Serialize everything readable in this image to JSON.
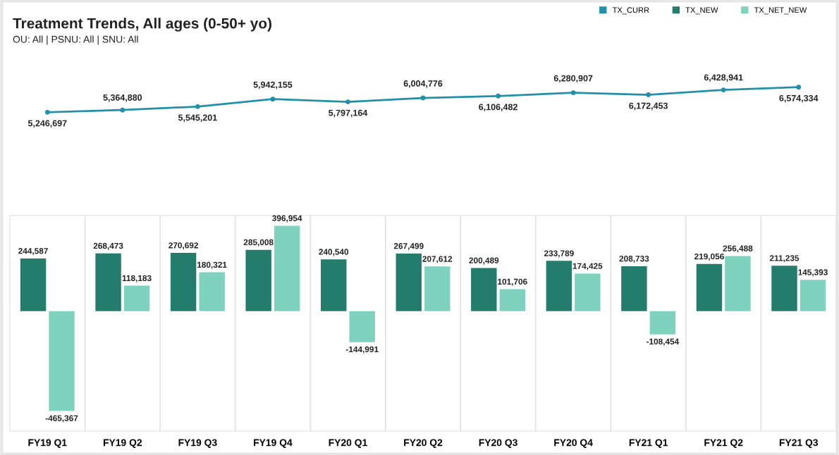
{
  "chart_data": [
    {
      "type": "line",
      "title": "Treatment Trends, All ages (0-50+ yo)",
      "subtitle": "OU: All | PSNU: All | SNU: All",
      "categories": [
        null,
        null,
        null,
        null,
        null,
        null,
        null,
        null,
        null,
        null,
        null
      ],
      "series": [
        {
          "name": "TX_CURR",
          "color": "#2190a8",
          "values": [
            5246697,
            5364880,
            5545201,
            5942155,
            5797164,
            6004776,
            6106482,
            6280907,
            6172453,
            6428941,
            6574334
          ],
          "value_labels": [
            "5,246,697",
            "5,364,880",
            "5,545,201",
            "5,942,155",
            "5,797,164",
            "6,004,776",
            "6,106,482",
            "6,280,907",
            "6,172,453",
            "6,428,941",
            "6,574,334"
          ]
        }
      ],
      "marker": "circle",
      "legend": "top right",
      "tick_labels": false,
      "grid": false
    },
    {
      "type": "bar",
      "categories": [
        "FY19 Q1",
        "FY19 Q2",
        "FY19 Q3",
        "FY19 Q4",
        "FY20 Q1",
        "FY20 Q2",
        "FY20 Q3",
        "FY20 Q4",
        "FY21 Q1",
        "FY21 Q2",
        "FY21 Q3"
      ],
      "series": [
        {
          "name": "TX_NEW",
          "color": "#237c6c",
          "values": [
            244587,
            268473,
            270692,
            285008,
            240540,
            267499,
            200489,
            233789,
            208733,
            219056,
            211235
          ],
          "value_labels": [
            "244,587",
            "268,473",
            "270,692",
            "285,008",
            "240,540",
            "267,499",
            "200,489",
            "233,789",
            "208,733",
            "219,056",
            "211,235"
          ]
        },
        {
          "name": "TX_NET_NEW",
          "color": "#7fd3be",
          "values": [
            -465367,
            118183,
            180321,
            396954,
            -144991,
            207612,
            101706,
            174425,
            -108454,
            256488,
            145393
          ],
          "value_labels": [
            "-465,367",
            "118,183",
            "180,321",
            "396,954",
            "-144,991",
            "207,612",
            "101,706",
            "174,425",
            "-108,454",
            "256,488",
            "145,393"
          ]
        }
      ],
      "legend": "top right",
      "tick_labels": "x",
      "grid": false
    }
  ]
}
